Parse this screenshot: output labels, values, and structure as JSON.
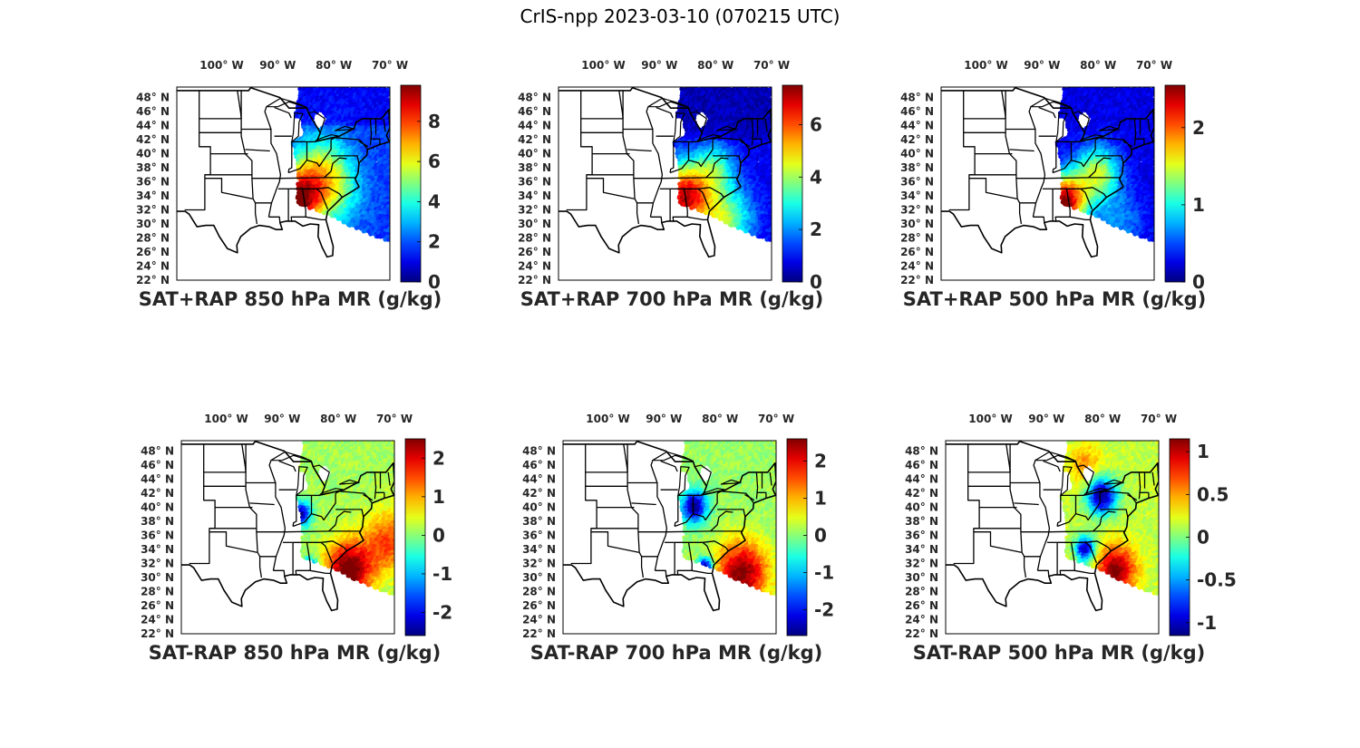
{
  "title": "CrIS-npp 2023-03-10 (070215 UTC)",
  "lon_labels": [
    "100",
    "90",
    "80",
    "70"
  ],
  "lat_labels": [
    "48",
    "46",
    "44",
    "42",
    "40",
    "38",
    "36",
    "34",
    "32",
    "30",
    "28",
    "26",
    "24",
    "22"
  ],
  "lon_values": [
    -100,
    -90,
    -80,
    -70
  ],
  "lat_values": [
    48,
    46,
    44,
    42,
    40,
    38,
    36,
    34,
    32,
    30,
    28,
    26,
    24,
    22
  ],
  "lon_hemisphere": "W",
  "lat_hemisphere": "N",
  "map_extent": {
    "lon": [
      -108,
      -70
    ],
    "lat": [
      22,
      49.5
    ]
  },
  "colormap": "jet",
  "panels": [
    {
      "label": "SAT+RAP 850 hPa MR (g/kg)",
      "cbar_ticks": [
        "0",
        "2",
        "4",
        "6",
        "8"
      ],
      "cbar_values": [
        0,
        2,
        4,
        6,
        8
      ],
      "cbar_range": [
        0,
        9.8
      ],
      "field": "sum850"
    },
    {
      "label": "SAT+RAP 700 hPa MR (g/kg)",
      "cbar_ticks": [
        "0",
        "2",
        "4",
        "6"
      ],
      "cbar_values": [
        0,
        2,
        4,
        6
      ],
      "cbar_range": [
        0,
        7.5
      ],
      "field": "sum700"
    },
    {
      "label": "SAT+RAP 500 hPa MR (g/kg)",
      "cbar_ticks": [
        "0",
        "1",
        "2"
      ],
      "cbar_values": [
        0,
        1,
        2
      ],
      "cbar_range": [
        0,
        2.55
      ],
      "field": "sum500"
    },
    {
      "label": "SAT-RAP 850 hPa MR (g/kg)",
      "cbar_ticks": [
        "-2",
        "-1",
        "0",
        "1",
        "2"
      ],
      "cbar_values": [
        -2,
        -1,
        0,
        1,
        2
      ],
      "cbar_range": [
        -2.6,
        2.5
      ],
      "field": "diff850"
    },
    {
      "label": "SAT-RAP 700 hPa MR (g/kg)",
      "cbar_ticks": [
        "-2",
        "-1",
        "0",
        "1",
        "2"
      ],
      "cbar_values": [
        -2,
        -1,
        0,
        1,
        2
      ],
      "cbar_range": [
        -2.7,
        2.6
      ],
      "field": "diff700"
    },
    {
      "label": "SAT-RAP 500 hPa MR (g/kg)",
      "cbar_ticks": [
        "-1",
        "-0.5",
        "0",
        "0.5",
        "1"
      ],
      "cbar_values": [
        -1,
        -0.5,
        0,
        0.5,
        1
      ],
      "cbar_range": [
        -1.15,
        1.15
      ],
      "field": "diff500"
    }
  ]
}
